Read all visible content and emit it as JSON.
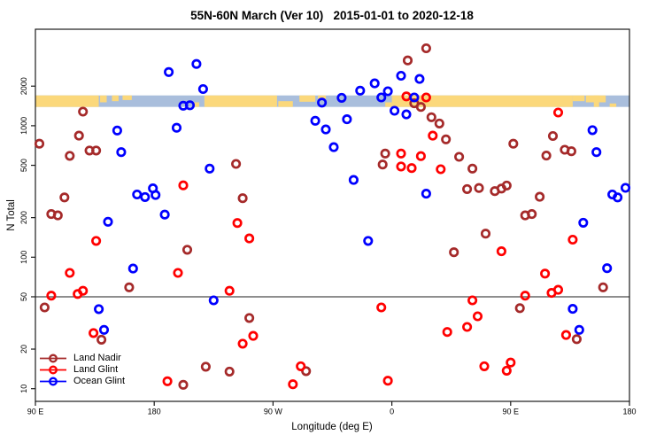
{
  "chart_data": {
    "type": "scatter",
    "title": "55N-60N March (Ver 10)   2015-01-01 to 2020-12-18",
    "xlabel": "Longitude (deg E)",
    "ylabel": "N Total",
    "x_axis": {
      "tick_positions_deg": [
        90,
        180,
        270,
        360,
        450,
        540
      ],
      "tick_labels": [
        "90 E",
        "180",
        "90 W",
        "0",
        "90 E",
        "180"
      ],
      "range_deg": [
        90,
        540
      ]
    },
    "y_axis": {
      "scale": "log10",
      "ticks": [
        10,
        20,
        50,
        100,
        200,
        500,
        1000,
        2000
      ],
      "tick_labels": [
        "10",
        "20",
        "50",
        "100",
        "200",
        "500",
        "1000",
        "2000"
      ],
      "range": [
        8,
        5400
      ]
    },
    "grid": "off",
    "ref_line_y": 50,
    "ref_line_color": "#4a4a4a",
    "map_band": {
      "description": "land/ocean strip along latitude band",
      "value_top": 1700,
      "value_bottom": 1390,
      "ocean_color": "#A9BEDC",
      "land_color": "#FBD87B",
      "land_segments": [
        {
          "from": 90,
          "to": 138,
          "pos": "full",
          "frac": 1
        },
        {
          "from": 139,
          "to": 144,
          "pos": "top",
          "frac": 0.6
        },
        {
          "from": 148,
          "to": 153,
          "pos": "top",
          "frac": 0.5
        },
        {
          "from": 156,
          "to": 163,
          "pos": "top",
          "frac": 0.4
        },
        {
          "from": 209,
          "to": 214,
          "pos": "bottom",
          "frac": 0.4
        },
        {
          "from": 218,
          "to": 273,
          "pos": "full",
          "frac": 1
        },
        {
          "from": 274,
          "to": 285,
          "pos": "bottom",
          "frac": 0.5
        },
        {
          "from": 290,
          "to": 302,
          "pos": "top",
          "frac": 0.55
        },
        {
          "from": 304,
          "to": 310,
          "pos": "top",
          "frac": 0.3
        },
        {
          "from": 355,
          "to": 360,
          "pos": "bottom",
          "frac": 0.4
        },
        {
          "from": 360,
          "to": 497,
          "pos": "full",
          "frac": 1
        },
        {
          "from": 497,
          "to": 506,
          "pos": "top",
          "frac": 0.5
        },
        {
          "from": 507,
          "to": 522,
          "pos": "top",
          "frac": 0.6
        },
        {
          "from": 513,
          "to": 517,
          "pos": "full",
          "frac": 1
        },
        {
          "from": 525,
          "to": 530,
          "pos": "bottom",
          "frac": 0.3
        }
      ]
    },
    "legend": {
      "position": "bottom-left"
    },
    "series": [
      {
        "name": "Land Nadir",
        "color": "#A52A2A",
        "points": [
          [
            126,
            1280
          ],
          [
            123,
            840
          ],
          [
            93,
            730
          ],
          [
            131,
            648
          ],
          [
            136,
            648
          ],
          [
            116,
            590
          ],
          [
            112,
            285
          ],
          [
            102,
            213
          ],
          [
            107,
            208
          ],
          [
            97,
            41.5
          ],
          [
            161,
            59
          ],
          [
            140,
            23.6
          ],
          [
            242,
            512
          ],
          [
            247,
            281
          ],
          [
            205,
            114
          ],
          [
            219,
            14.7
          ],
          [
            237,
            13.5
          ],
          [
            202,
            10.7
          ],
          [
            295,
            13.6
          ],
          [
            252,
            34.5
          ],
          [
            386,
            3880
          ],
          [
            372,
            3140
          ],
          [
            377,
            1480
          ],
          [
            382,
            1390
          ],
          [
            390,
            1160
          ],
          [
            396,
            1040
          ],
          [
            401,
            788
          ],
          [
            411,
            580
          ],
          [
            355,
            614
          ],
          [
            353,
            507
          ],
          [
            421,
            472
          ],
          [
            417,
            330
          ],
          [
            426,
            336
          ],
          [
            407,
            109
          ],
          [
            431,
            151
          ],
          [
            452,
            730
          ],
          [
            482,
            835
          ],
          [
            491,
            657
          ],
          [
            496,
            640
          ],
          [
            477,
            593
          ],
          [
            438,
            318
          ],
          [
            443,
            333
          ],
          [
            447,
            351
          ],
          [
            472,
            288
          ],
          [
            461,
            208
          ],
          [
            466,
            213
          ],
          [
            457,
            41
          ],
          [
            520,
            59
          ],
          [
            500,
            23.8
          ]
        ]
      },
      {
        "name": "Land Glint",
        "color": "#FF0000",
        "points": [
          [
            202,
            352
          ],
          [
            243,
            182
          ],
          [
            252,
            139
          ],
          [
            136,
            133
          ],
          [
            116,
            76
          ],
          [
            198,
            76
          ],
          [
            102,
            51
          ],
          [
            122,
            52.5
          ],
          [
            126,
            55.5
          ],
          [
            134,
            26.5
          ],
          [
            190,
            11.4
          ],
          [
            237,
            55.5
          ],
          [
            255,
            25.2
          ],
          [
            247,
            22
          ],
          [
            291,
            14.8
          ],
          [
            285,
            10.8
          ],
          [
            371,
            1670
          ],
          [
            386,
            1640
          ],
          [
            391,
            840
          ],
          [
            367,
            614
          ],
          [
            382,
            587
          ],
          [
            367,
            490
          ],
          [
            375,
            476
          ],
          [
            397,
            467
          ],
          [
            352,
            41.5
          ],
          [
            357,
            11.5
          ],
          [
            402,
            27
          ],
          [
            417,
            29.5
          ],
          [
            421,
            47
          ],
          [
            425,
            35.5
          ],
          [
            430,
            14.8
          ],
          [
            486,
            1260
          ],
          [
            497,
            136
          ],
          [
            443,
            111
          ],
          [
            476,
            75
          ],
          [
            481,
            53.5
          ],
          [
            486,
            56.5
          ],
          [
            461,
            51
          ],
          [
            492,
            25.6
          ],
          [
            450,
            15.8
          ],
          [
            447,
            13.7
          ]
        ]
      },
      {
        "name": "Ocean Glint",
        "color": "#0000FF",
        "points": [
          [
            191,
            2560
          ],
          [
            152,
            920
          ],
          [
            197,
            965
          ],
          [
            155,
            630
          ],
          [
            167,
            300
          ],
          [
            173,
            287
          ],
          [
            181,
            297
          ],
          [
            179,
            334
          ],
          [
            188,
            211
          ],
          [
            145,
            186
          ],
          [
            212,
            2950
          ],
          [
            217,
            1900
          ],
          [
            202,
            1420
          ],
          [
            207,
            1430
          ],
          [
            307,
            1500
          ],
          [
            302,
            1090
          ],
          [
            310,
            937
          ],
          [
            316,
            687
          ],
          [
            222,
            472
          ],
          [
            138,
            40.3
          ],
          [
            164,
            82
          ],
          [
            142,
            28
          ],
          [
            225,
            47
          ],
          [
            342,
            133
          ],
          [
            322,
            1630
          ],
          [
            352,
            1640
          ],
          [
            377,
            1640
          ],
          [
            347,
            2100
          ],
          [
            336,
            1850
          ],
          [
            357,
            1830
          ],
          [
            367,
            2400
          ],
          [
            381,
            2270
          ],
          [
            362,
            1300
          ],
          [
            371,
            1220
          ],
          [
            326,
            1120
          ],
          [
            331,
            387
          ],
          [
            386,
            304
          ],
          [
            505,
            183
          ],
          [
            512,
            925
          ],
          [
            515,
            630
          ],
          [
            523,
            82.5
          ],
          [
            527,
            300
          ],
          [
            531,
            285
          ],
          [
            537,
            337
          ],
          [
            497,
            40.5
          ],
          [
            502,
            28
          ]
        ]
      }
    ]
  }
}
